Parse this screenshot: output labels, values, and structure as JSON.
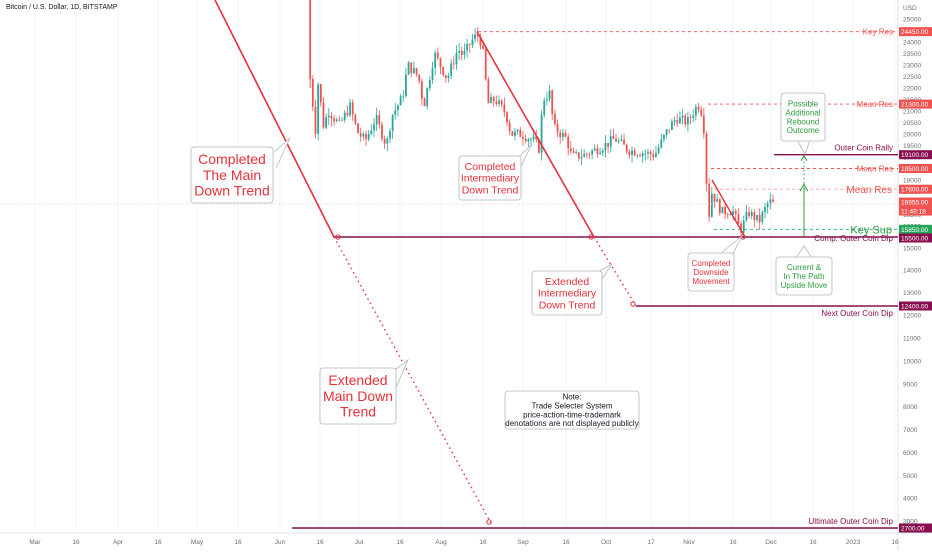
{
  "header": {
    "symbol_title": "Bitcoin / U.S. Dollar, 1D, BITSTAMP"
  },
  "axis": {
    "currency": "USD"
  },
  "colors": {
    "up": "#26a69a",
    "down": "#ef5350",
    "trend_red": "#e8303a",
    "maroon": "#880e4f",
    "green": "#2e9a3d",
    "gray_line": "#9598a1"
  },
  "chart_data": {
    "type": "candlestick",
    "title": "Bitcoin / U.S. Dollar, 1D, BITSTAMP",
    "ylabel": "USD",
    "y_ticks": [
      25000,
      24500,
      24000,
      23500,
      23000,
      22500,
      22000,
      21500,
      21000,
      20500,
      20000,
      19500,
      19000,
      18500,
      18000,
      17500,
      17000,
      16500,
      16000,
      15500,
      15000,
      14000,
      13000,
      12000,
      11000,
      10000,
      9000,
      8000,
      7000,
      6000,
      5000,
      4000,
      3000
    ],
    "x_ticks": [
      "Mar",
      "16",
      "Apr",
      "16",
      "May",
      "16",
      "Jun",
      "16",
      "Jul",
      "16",
      "Aug",
      "16",
      "Sep",
      "16",
      "Oct",
      "17",
      "Nov",
      "16",
      "Dec",
      "16",
      "2023",
      "16"
    ],
    "price_tags": [
      {
        "value": "24450.00",
        "name": "Key Res",
        "kind": "red"
      },
      {
        "value": "21300.00",
        "name": "Mean Res",
        "kind": "red"
      },
      {
        "value": "19100.00",
        "name": "Outer Coin Rally",
        "kind": "maroon"
      },
      {
        "value": "18500.00",
        "name": "Mean Res",
        "kind": "red"
      },
      {
        "value": "17600.00",
        "name": "Mean Res",
        "kind": "red"
      },
      {
        "value": "16955.00",
        "name": "",
        "kind": "last"
      },
      {
        "value": "11:49:18",
        "name": "",
        "kind": "time"
      },
      {
        "value": "15850.00",
        "name": "Key Sup",
        "kind": "green"
      },
      {
        "value": "15500.00",
        "name": "Comp. Outer Coin Dip",
        "kind": "maroon"
      },
      {
        "value": "12400.00",
        "name": "Next Outer Coin Dip",
        "kind": "maroon"
      },
      {
        "value": "2700.00",
        "name": "Ultimate Outer Coin Dip",
        "kind": "maroon"
      }
    ],
    "price_path": [
      [
        "Jun 12",
        28000
      ],
      [
        "Jun 13",
        22400
      ],
      [
        "Jun 15",
        20200
      ],
      [
        "Jun 16",
        22200
      ],
      [
        "Jun 18",
        20400
      ],
      [
        "Jun 20",
        21000
      ],
      [
        "Jun 24",
        20400
      ],
      [
        "Jun 28",
        21200
      ],
      [
        "Jul 1",
        20100
      ],
      [
        "Jul 4",
        19700
      ],
      [
        "Jul 8",
        20700
      ],
      [
        "Jul 12",
        19500
      ],
      [
        "Jul 14",
        20800
      ],
      [
        "Jul 18",
        21600
      ],
      [
        "Jul 20",
        23000
      ],
      [
        "Jul 24",
        22500
      ],
      [
        "Jul 26",
        21200
      ],
      [
        "Jul 30",
        23500
      ],
      [
        "Aug 4",
        22400
      ],
      [
        "Aug 8",
        23700
      ],
      [
        "Aug 10",
        23400
      ],
      [
        "Aug 14",
        24200
      ],
      [
        "Aug 16",
        24300
      ],
      [
        "Aug 18",
        23200
      ],
      [
        "Aug 19",
        21300
      ],
      [
        "Aug 22",
        21500
      ],
      [
        "Aug 26",
        20900
      ],
      [
        "Aug 28",
        20000
      ],
      [
        "Sep 1",
        20000
      ],
      [
        "Sep 6",
        19700
      ],
      [
        "Sep 8",
        19300
      ],
      [
        "Sep 9",
        21500
      ],
      [
        "Sep 12",
        21800
      ],
      [
        "Sep 13",
        20300
      ],
      [
        "Sep 18",
        19800
      ],
      [
        "Sep 20",
        19000
      ],
      [
        "Sep 25",
        19100
      ],
      [
        "Oct 1",
        19500
      ],
      [
        "Oct 5",
        19800
      ],
      [
        "Oct 10",
        19300
      ],
      [
        "Oct 15",
        19200
      ],
      [
        "Oct 20",
        19100
      ],
      [
        "Oct 25",
        20200
      ],
      [
        "Oct 28",
        20700
      ],
      [
        "Nov 1",
        20500
      ],
      [
        "Nov 5",
        21300
      ],
      [
        "Nov 7",
        20800
      ],
      [
        "Nov 8",
        18500
      ],
      [
        "Nov 9",
        16200
      ],
      [
        "Nov 10",
        17500
      ],
      [
        "Nov 14",
        16600
      ],
      [
        "Nov 18",
        16700
      ],
      [
        "Nov 21",
        15800
      ],
      [
        "Nov 24",
        16600
      ],
      [
        "Nov 28",
        16200
      ],
      [
        "Dec 1",
        17100
      ],
      [
        "Dec 2",
        16955
      ]
    ]
  },
  "annotations": {
    "completed_main": [
      "Completed",
      "The Main",
      "Down Trend"
    ],
    "extended_main": [
      "Extended",
      "Main Down",
      "Trend"
    ],
    "completed_inter": [
      "Completed",
      "Intermediary",
      "Down Trend"
    ],
    "extended_inter": [
      "Extended",
      "Intermediary",
      "Down Trend"
    ],
    "completed_downside": [
      "Completed",
      "Downside",
      "Movement"
    ],
    "current_path": [
      "Current &",
      "In The Path",
      "Upside Move"
    ],
    "possible_rebound": [
      "Possible",
      "Additional",
      "Rebound",
      "Outcome"
    ],
    "note": [
      "Note:",
      "Trade Selecter System",
      "price-action-time-trademark",
      "denotations are not displayed publicly"
    ]
  }
}
